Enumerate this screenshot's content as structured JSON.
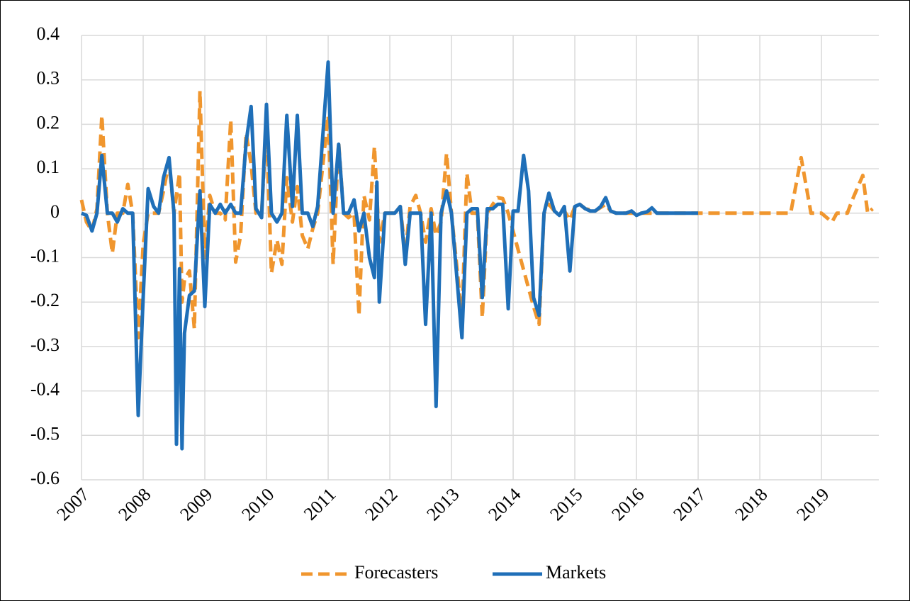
{
  "chart_data": {
    "type": "line",
    "grid": true,
    "legend": "bottom",
    "xlim": [
      2007,
      2019.93
    ],
    "xticks": [
      2007,
      2008,
      2009,
      2010,
      2011,
      2012,
      2013,
      2014,
      2015,
      2016,
      2017,
      2018,
      2019
    ],
    "ylim": [
      -0.6,
      0.4
    ],
    "yticks": [
      0.4,
      0.3,
      0.2,
      0.1,
      0,
      -0.1,
      -0.2,
      -0.3,
      -0.4,
      -0.5,
      -0.6
    ],
    "series": [
      {
        "name": "Forecasters",
        "color": "#f0962e",
        "dash": true,
        "x": [
          2007.0,
          2007.08,
          2007.17,
          2007.25,
          2007.33,
          2007.42,
          2007.5,
          2007.58,
          2007.67,
          2007.75,
          2007.83,
          2007.92,
          2008.0,
          2008.08,
          2008.17,
          2008.25,
          2008.33,
          2008.42,
          2008.5,
          2008.59,
          2008.63,
          2008.67,
          2008.75,
          2008.83,
          2008.92,
          2009.0,
          2009.08,
          2009.17,
          2009.25,
          2009.33,
          2009.42,
          2009.5,
          2009.58,
          2009.67,
          2009.75,
          2009.83,
          2009.92,
          2010.0,
          2010.08,
          2010.17,
          2010.25,
          2010.33,
          2010.42,
          2010.5,
          2010.58,
          2010.67,
          2010.75,
          2010.83,
          2011.0,
          2011.08,
          2011.17,
          2011.25,
          2011.33,
          2011.42,
          2011.5,
          2011.58,
          2011.67,
          2011.75,
          2011.83,
          2011.92,
          2012.08,
          2012.17,
          2012.25,
          2012.33,
          2012.42,
          2012.5,
          2012.58,
          2012.67,
          2012.75,
          2012.83,
          2012.92,
          2013.0,
          2013.17,
          2013.25,
          2013.33,
          2013.42,
          2013.5,
          2013.58,
          2013.67,
          2013.75,
          2013.83,
          2013.92,
          2014.33,
          2014.42,
          2014.5,
          2014.58,
          2014.67,
          2014.83,
          2014.92,
          2015.0,
          2015.08,
          2015.17,
          2015.33,
          2015.5,
          2015.58,
          2015.67,
          2018.5,
          2018.67,
          2018.83,
          2019.0,
          2019.17,
          2019.25,
          2019.42,
          2019.5,
          2019.67,
          2019.75,
          2019.83
        ],
        "values": [
          0.03,
          -0.02,
          -0.04,
          0.01,
          0.22,
          0,
          -0.09,
          0,
          0,
          0.065,
          0,
          -0.28,
          -0.07,
          0,
          0,
          0,
          0.05,
          0.115,
          0,
          0.09,
          -0.2,
          -0.15,
          -0.13,
          -0.26,
          0.275,
          -0.1,
          0.04,
          0,
          0,
          -0.015,
          0.21,
          -0.11,
          -0.05,
          0.18,
          0.11,
          0,
          0,
          0.2,
          -0.135,
          -0.06,
          -0.115,
          0.08,
          -0.02,
          0.06,
          -0.05,
          -0.08,
          -0.035,
          0,
          0.22,
          -0.115,
          0.16,
          0,
          -0.01,
          0,
          -0.23,
          0.04,
          -0.015,
          0.15,
          -0.065,
          0,
          0,
          0.015,
          -0.09,
          0.015,
          0.04,
          0,
          -0.065,
          0.01,
          -0.05,
          -0.02,
          0.135,
          0,
          -0.235,
          0.09,
          0,
          0,
          -0.235,
          0,
          0.02,
          0.035,
          0.033,
          0,
          -0.21,
          -0.25,
          0,
          0.02,
          0.005,
          0.005,
          -0.015,
          0.015,
          0.02,
          0.01,
          0.005,
          0.02,
          0.005,
          0,
          0,
          0.125,
          0,
          0,
          -0.02,
          0,
          0,
          0.03,
          0.085,
          0,
          0.01
        ]
      },
      {
        "name": "Markets",
        "color": "#1f6fb8",
        "dash": false,
        "x": [
          2007.0,
          2007.08,
          2007.17,
          2007.25,
          2007.33,
          2007.42,
          2007.5,
          2007.58,
          2007.67,
          2007.75,
          2007.83,
          2007.92,
          2008.0,
          2008.08,
          2008.17,
          2008.25,
          2008.33,
          2008.42,
          2008.5,
          2008.54,
          2008.59,
          2008.63,
          2008.67,
          2008.75,
          2008.83,
          2008.92,
          2009.0,
          2009.08,
          2009.17,
          2009.25,
          2009.33,
          2009.42,
          2009.5,
          2009.58,
          2009.67,
          2009.75,
          2009.83,
          2009.92,
          2010.0,
          2010.08,
          2010.17,
          2010.25,
          2010.33,
          2010.42,
          2010.5,
          2010.58,
          2010.67,
          2010.75,
          2010.83,
          2011.0,
          2011.08,
          2011.17,
          2011.25,
          2011.33,
          2011.42,
          2011.5,
          2011.58,
          2011.67,
          2011.75,
          2011.79,
          2011.83,
          2011.92,
          2012.08,
          2012.17,
          2012.25,
          2012.33,
          2012.5,
          2012.58,
          2012.67,
          2012.75,
          2012.83,
          2012.92,
          2013.0,
          2013.17,
          2013.25,
          2013.33,
          2013.42,
          2013.5,
          2013.58,
          2013.67,
          2013.75,
          2013.83,
          2013.92,
          2014.0,
          2014.08,
          2014.17,
          2014.25,
          2014.33,
          2014.42,
          2014.5,
          2014.58,
          2014.67,
          2014.75,
          2014.83,
          2014.92,
          2015.0,
          2015.08,
          2015.17,
          2015.25,
          2015.33,
          2015.42,
          2015.5,
          2015.58,
          2015.67,
          2015.83,
          2015.92,
          2016.0,
          2016.08,
          2016.17,
          2016.25,
          2016.33,
          2017.0
        ],
        "values": [
          0,
          -0.005,
          -0.04,
          0,
          0.13,
          0,
          0,
          -0.02,
          0.01,
          0,
          0,
          -0.455,
          -0.19,
          0.055,
          0.015,
          0,
          0.08,
          0.125,
          0,
          -0.52,
          -0.125,
          -0.53,
          -0.27,
          -0.185,
          -0.175,
          0.05,
          -0.21,
          0.02,
          0,
          0.02,
          0,
          0.02,
          0,
          0,
          0.16,
          0.24,
          0.01,
          -0.01,
          0.245,
          0,
          -0.02,
          0,
          0.22,
          0.015,
          0.22,
          0,
          0,
          -0.03,
          0.015,
          0.34,
          0,
          0.155,
          0,
          0,
          0.03,
          -0.04,
          0,
          -0.1,
          -0.145,
          0.07,
          -0.2,
          0,
          0,
          0.015,
          -0.115,
          0,
          0,
          -0.25,
          0,
          -0.435,
          0,
          0.05,
          0,
          -0.28,
          0,
          0.01,
          0.01,
          -0.19,
          0.01,
          0.01,
          0.02,
          0.02,
          -0.215,
          0.005,
          0.005,
          0.13,
          0.05,
          -0.19,
          -0.23,
          0,
          0.045,
          0.005,
          -0.005,
          0.015,
          -0.13,
          0.015,
          0.02,
          0.01,
          0.005,
          0.005,
          0.015,
          0.035,
          0.005,
          0,
          0,
          0.005,
          -0.005,
          0,
          0.003,
          0.012,
          0,
          0
        ]
      }
    ]
  }
}
